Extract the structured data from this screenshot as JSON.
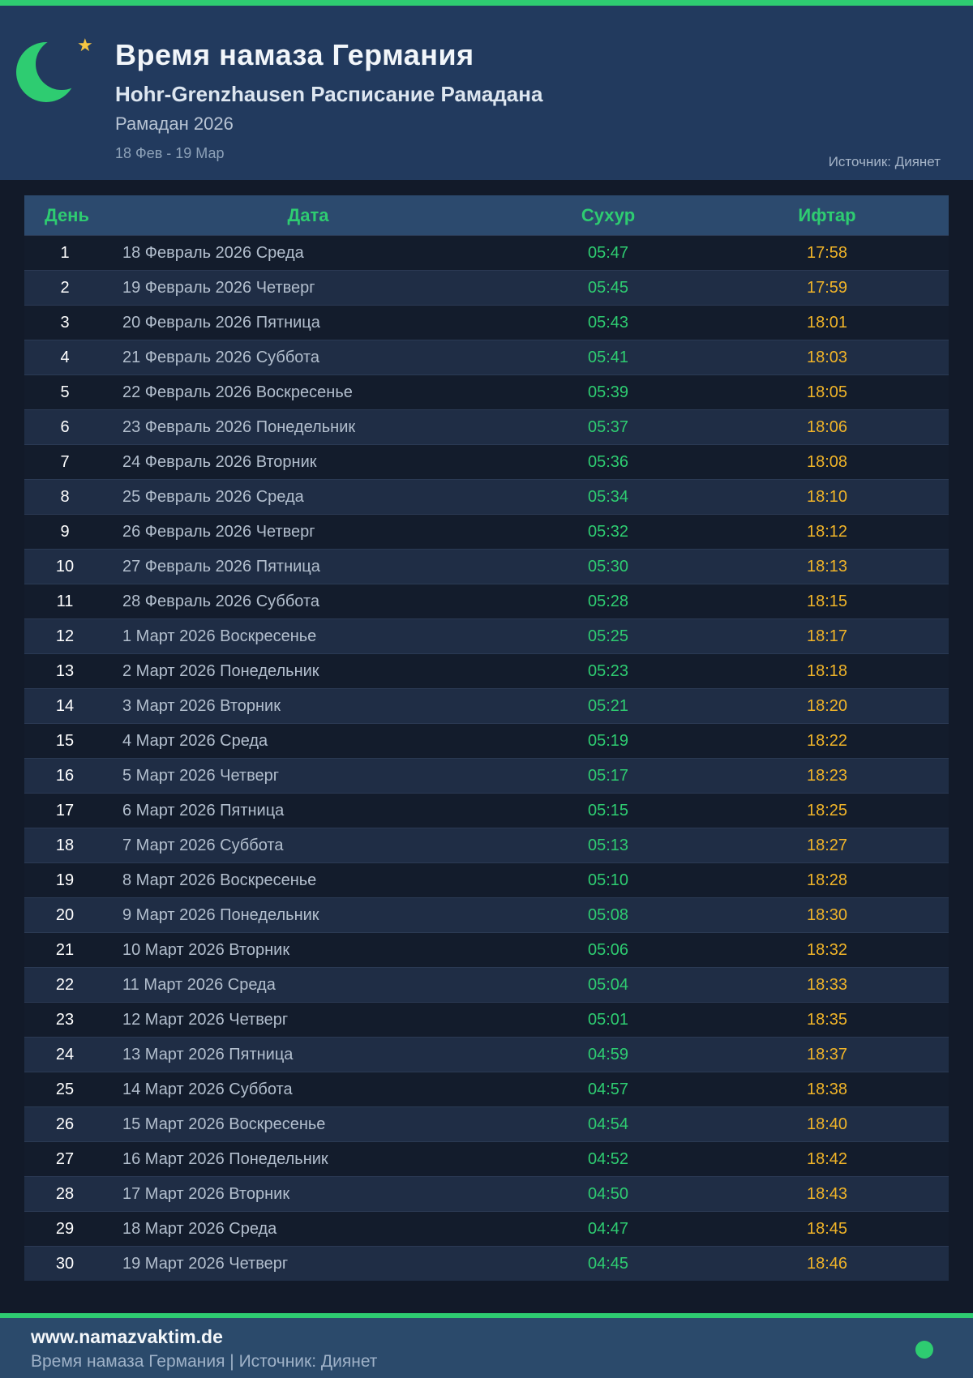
{
  "header": {
    "title": "Время намаза Германия",
    "subtitle": "Hohr-Grenzhausen Расписание Рамадана",
    "season": "Рамадан 2026",
    "date_range": "18 Фев - 19 Мар",
    "source": "Источник: Диянет"
  },
  "table": {
    "columns": {
      "day": "День",
      "date": "Дата",
      "suhur": "Сухур",
      "iftar": "Ифтар"
    },
    "rows": [
      {
        "day": "1",
        "date": "18 Февраль 2026 Среда",
        "suhur": "05:47",
        "iftar": "17:58"
      },
      {
        "day": "2",
        "date": "19 Февраль 2026 Четверг",
        "suhur": "05:45",
        "iftar": "17:59"
      },
      {
        "day": "3",
        "date": "20 Февраль 2026 Пятница",
        "suhur": "05:43",
        "iftar": "18:01"
      },
      {
        "day": "4",
        "date": "21 Февраль 2026 Суббота",
        "suhur": "05:41",
        "iftar": "18:03"
      },
      {
        "day": "5",
        "date": "22 Февраль 2026 Воскресенье",
        "suhur": "05:39",
        "iftar": "18:05"
      },
      {
        "day": "6",
        "date": "23 Февраль 2026 Понедельник",
        "suhur": "05:37",
        "iftar": "18:06"
      },
      {
        "day": "7",
        "date": "24 Февраль 2026 Вторник",
        "suhur": "05:36",
        "iftar": "18:08"
      },
      {
        "day": "8",
        "date": "25 Февраль 2026 Среда",
        "suhur": "05:34",
        "iftar": "18:10"
      },
      {
        "day": "9",
        "date": "26 Февраль 2026 Четверг",
        "suhur": "05:32",
        "iftar": "18:12"
      },
      {
        "day": "10",
        "date": "27 Февраль 2026 Пятница",
        "suhur": "05:30",
        "iftar": "18:13"
      },
      {
        "day": "11",
        "date": "28 Февраль 2026 Суббота",
        "suhur": "05:28",
        "iftar": "18:15"
      },
      {
        "day": "12",
        "date": "1 Март 2026 Воскресенье",
        "suhur": "05:25",
        "iftar": "18:17"
      },
      {
        "day": "13",
        "date": "2 Март 2026 Понедельник",
        "suhur": "05:23",
        "iftar": "18:18"
      },
      {
        "day": "14",
        "date": "3 Март 2026 Вторник",
        "suhur": "05:21",
        "iftar": "18:20"
      },
      {
        "day": "15",
        "date": "4 Март 2026 Среда",
        "suhur": "05:19",
        "iftar": "18:22"
      },
      {
        "day": "16",
        "date": "5 Март 2026 Четверг",
        "suhur": "05:17",
        "iftar": "18:23"
      },
      {
        "day": "17",
        "date": "6 Март 2026 Пятница",
        "suhur": "05:15",
        "iftar": "18:25"
      },
      {
        "day": "18",
        "date": "7 Март 2026 Суббота",
        "suhur": "05:13",
        "iftar": "18:27"
      },
      {
        "day": "19",
        "date": "8 Март 2026 Воскресенье",
        "suhur": "05:10",
        "iftar": "18:28"
      },
      {
        "day": "20",
        "date": "9 Март 2026 Понедельник",
        "suhur": "05:08",
        "iftar": "18:30"
      },
      {
        "day": "21",
        "date": "10 Март 2026 Вторник",
        "suhur": "05:06",
        "iftar": "18:32"
      },
      {
        "day": "22",
        "date": "11 Март 2026 Среда",
        "suhur": "05:04",
        "iftar": "18:33"
      },
      {
        "day": "23",
        "date": "12 Март 2026 Четверг",
        "suhur": "05:01",
        "iftar": "18:35"
      },
      {
        "day": "24",
        "date": "13 Март 2026 Пятница",
        "suhur": "04:59",
        "iftar": "18:37"
      },
      {
        "day": "25",
        "date": "14 Март 2026 Суббота",
        "suhur": "04:57",
        "iftar": "18:38"
      },
      {
        "day": "26",
        "date": "15 Март 2026 Воскресенье",
        "suhur": "04:54",
        "iftar": "18:40"
      },
      {
        "day": "27",
        "date": "16 Март 2026 Понедельник",
        "suhur": "04:52",
        "iftar": "18:42"
      },
      {
        "day": "28",
        "date": "17 Март 2026 Вторник",
        "suhur": "04:50",
        "iftar": "18:43"
      },
      {
        "day": "29",
        "date": "18 Март 2026 Среда",
        "suhur": "04:47",
        "iftar": "18:45"
      },
      {
        "day": "30",
        "date": "19 Март 2026 Четверг",
        "suhur": "04:45",
        "iftar": "18:46"
      }
    ]
  },
  "footer": {
    "website": "www.namazvaktim.de",
    "tagline": "Время намаза Германия | Источник: Диянет"
  },
  "icons": {
    "moon": "crescent-moon-icon",
    "star": "star-icon",
    "star_glyph": "★",
    "dot": "green-dot-icon"
  },
  "colors": {
    "accent_green": "#2ecc71",
    "iftar_yellow": "#f0b429",
    "header_navy": "#223a5e",
    "page_dark": "#121a29",
    "table_header_bg": "#2c4a6e",
    "row_odd": "#131c2c",
    "row_even": "#1f2d45",
    "footer_bg": "#2b4a6b",
    "star_gold": "#f5c542"
  }
}
